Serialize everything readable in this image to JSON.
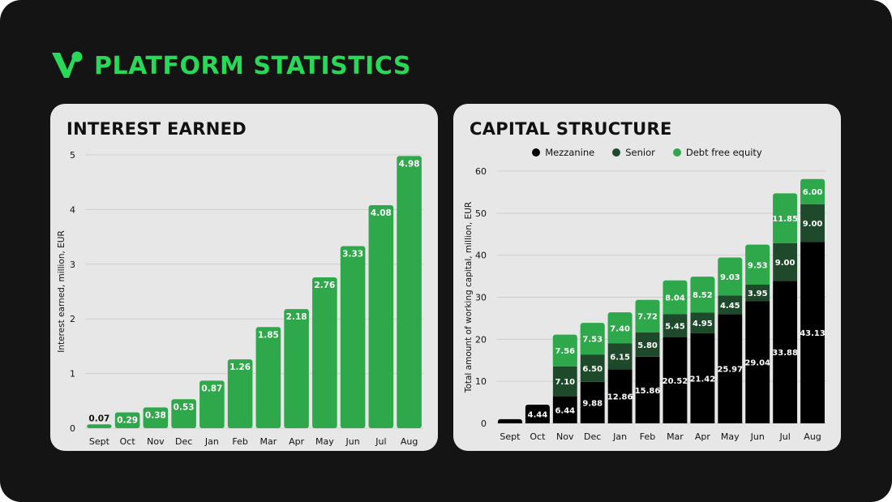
{
  "page": {
    "title": "PLATFORM STATISTICS",
    "logo_icon": "brand-v-logo-icon"
  },
  "colors": {
    "background": "#141414",
    "accent": "#27d957",
    "panel": "#e7e7e7",
    "bar_green": "#2ea84a",
    "mezzanine": "#000000",
    "senior": "#1e4a2b",
    "debt_free_equity": "#2ea84a"
  },
  "chart_data": [
    {
      "type": "bar",
      "title": "INTEREST EARNED",
      "xlabel": "",
      "ylabel": "Interest earned, million, EUR",
      "categories": [
        "Sept",
        "Oct",
        "Nov",
        "Dec",
        "Jan",
        "Feb",
        "Mar",
        "Apr",
        "May",
        "Jun",
        "Jul",
        "Aug"
      ],
      "values": [
        0.07,
        0.29,
        0.38,
        0.53,
        0.87,
        1.26,
        1.85,
        2.18,
        2.76,
        3.33,
        4.08,
        4.98
      ],
      "value_labels": [
        "0.07",
        "0.29",
        "0.38",
        "0.53",
        "0.87",
        "1.26",
        "1.85",
        "2.18",
        "2.76",
        "3.33",
        "4.08",
        "4.98"
      ],
      "ylim": [
        0,
        5
      ],
      "yticks": [
        0,
        1,
        2,
        3,
        4,
        5
      ],
      "grid": true
    },
    {
      "type": "bar",
      "stacked": true,
      "title": "CAPITAL STRUCTURE",
      "xlabel": "",
      "ylabel": "Total amount of working capital, million, EUR",
      "categories": [
        "Sept",
        "Oct",
        "Nov",
        "Dec",
        "Jan",
        "Feb",
        "Mar",
        "Apr",
        "May",
        "Jun",
        "Jul",
        "Aug"
      ],
      "series": [
        {
          "name": "Mezzanine",
          "values": [
            1.0,
            4.44,
            6.44,
            9.88,
            12.86,
            15.86,
            20.52,
            21.42,
            25.97,
            29.04,
            33.88,
            43.13
          ],
          "labels": [
            "",
            "4.44",
            "6.44",
            "9.88",
            "12.86",
            "15.86",
            "20.52",
            "21.42",
            "25.97",
            "29.04",
            "33.88",
            "43.13"
          ]
        },
        {
          "name": "Senior",
          "values": [
            0,
            0,
            7.1,
            6.5,
            6.15,
            5.8,
            5.45,
            4.95,
            4.45,
            3.95,
            9.0,
            9.0
          ],
          "labels": [
            "",
            "",
            "7.10",
            "6.50",
            "6.15",
            "5.80",
            "5.45",
            "4.95",
            "4.45",
            "3.95",
            "9.00",
            "9.00"
          ]
        },
        {
          "name": "Debt free equity",
          "values": [
            0,
            0,
            7.56,
            7.53,
            7.4,
            7.72,
            8.04,
            8.52,
            9.03,
            9.53,
            11.85,
            6.0
          ],
          "labels": [
            "",
            "",
            "7.56",
            "7.53",
            "7.40",
            "7.72",
            "8.04",
            "8.52",
            "9.03",
            "9.53",
            "11.85",
            "6.00"
          ]
        }
      ],
      "ylim": [
        0,
        60
      ],
      "yticks": [
        0,
        10,
        20,
        30,
        40,
        50,
        60
      ],
      "grid": true,
      "legend_position": "top"
    }
  ]
}
